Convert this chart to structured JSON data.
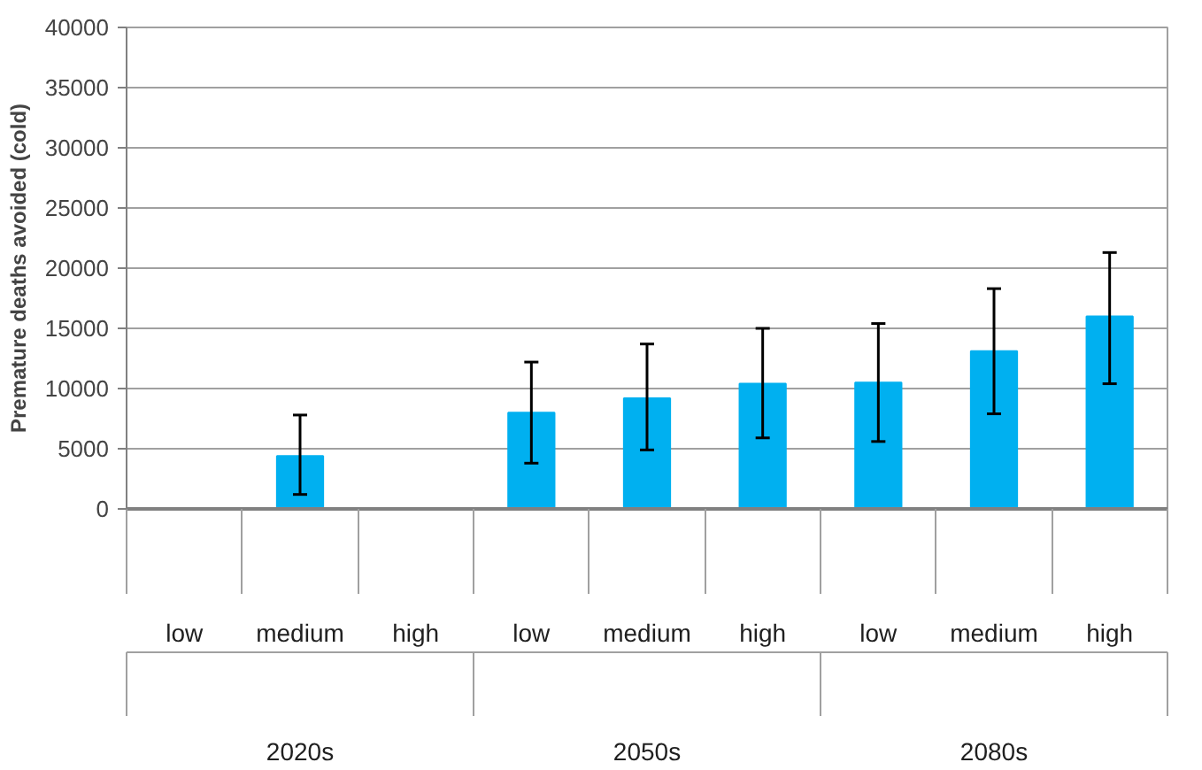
{
  "chart_data": {
    "type": "bar",
    "ylabel": "Premature deaths avoided (cold)",
    "categories": [
      "low",
      "medium",
      "high",
      "low",
      "medium",
      "high",
      "low",
      "medium",
      "high"
    ],
    "annotations": [
      "2020s",
      "2050s",
      "2080s"
    ],
    "values": [
      null,
      4400,
      null,
      8000,
      9200,
      10400,
      10500,
      13100,
      16000
    ],
    "errors": [
      null,
      [
        1200,
        7800
      ],
      null,
      [
        3800,
        12200
      ],
      [
        4900,
        13700
      ],
      [
        5900,
        15000
      ],
      [
        5600,
        15400
      ],
      [
        7900,
        18300
      ],
      [
        10400,
        21300
      ]
    ],
    "color": "#00b0f0",
    "ylim": [
      0,
      40000
    ],
    "yticks": [
      0,
      5000,
      10000,
      15000,
      20000,
      25000,
      30000,
      35000,
      40000
    ],
    "grid": "y"
  }
}
